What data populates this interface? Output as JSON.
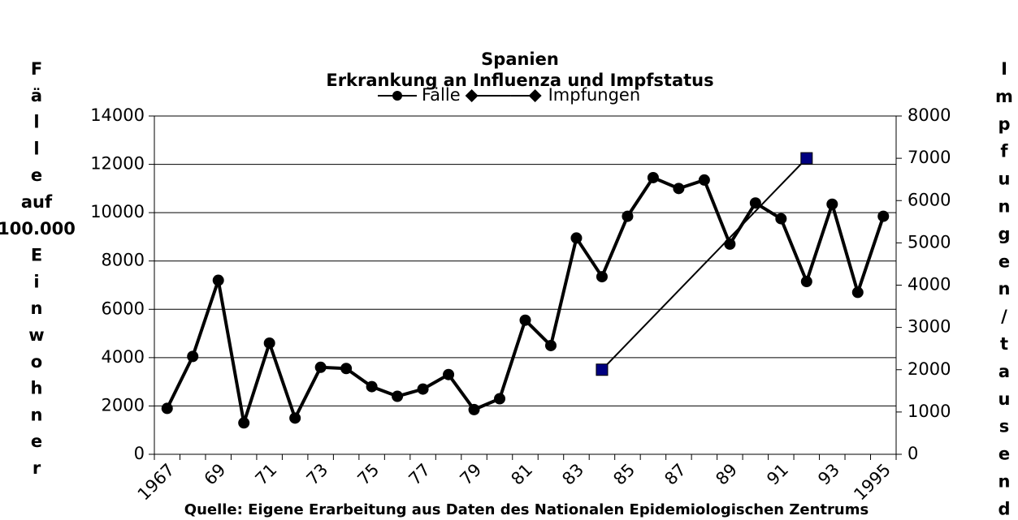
{
  "chart_data": {
    "type": "line",
    "title": "Spanien",
    "subtitle": "Erkrankung an Influenza und Impfstatus",
    "y_label": "Fälle auf 100.000 Einwohner",
    "y2_label": "Impfungen/tausend",
    "source": "Quelle: Eigene Erarbeitung aus Daten des Nationalen Epidemiologischen Zentrums",
    "categories": [
      "1967",
      null,
      "69",
      null,
      "71",
      null,
      "73",
      null,
      "75",
      null,
      "77",
      null,
      "79",
      null,
      "81",
      null,
      "83",
      null,
      "85",
      null,
      "87",
      null,
      "89",
      null,
      "91",
      null,
      "93",
      null,
      "1995"
    ],
    "series": [
      {
        "name": "Fälle",
        "color": "#000000",
        "marker": "circle",
        "values": [
          1900,
          4050,
          7200,
          1300,
          4600,
          1500,
          3600,
          3550,
          2800,
          2400,
          2700,
          3300,
          1850,
          2300,
          5550,
          4500,
          8950,
          7350,
          9850,
          11450,
          11000,
          11350,
          8700,
          10400,
          9750,
          7150,
          10350,
          6700,
          9850
        ]
      },
      {
        "name": "Impfungen",
        "color": "#000000",
        "marker_color": "#000080",
        "marker": "square",
        "axis": "y2",
        "connect_gaps": true,
        "values": [
          null,
          null,
          null,
          null,
          null,
          null,
          null,
          null,
          null,
          null,
          null,
          null,
          null,
          null,
          null,
          null,
          null,
          2000,
          null,
          null,
          null,
          null,
          null,
          null,
          null,
          7000,
          null,
          null,
          null
        ]
      }
    ],
    "ylim": [
      0,
      14000
    ],
    "yticks": [
      0,
      2000,
      4000,
      6000,
      8000,
      10000,
      12000,
      14000
    ],
    "y2lim": [
      0,
      8000
    ],
    "y2ticks": [
      0,
      1000,
      2000,
      3000,
      4000,
      5000,
      6000,
      7000,
      8000
    ],
    "grid": true,
    "legend": "top"
  }
}
